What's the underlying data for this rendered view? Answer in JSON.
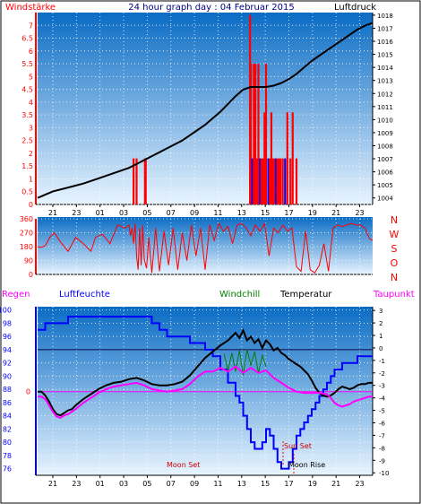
{
  "colors": {
    "left_axis": "#ff0000",
    "humidity": "#0000ff",
    "windchill": "#008000",
    "temperature": "#000000",
    "dewpoint": "#ff00ff",
    "pressure_line": "#000000",
    "wind_bars": "#ff0000",
    "wind_bars_alt": "#0000ff",
    "grid": "#ffffff",
    "bg_top": "#0a6cc4",
    "bg_bottom": "#e6f2ff"
  },
  "top_panel": {
    "left_title": "Windstärke",
    "center_title": "24 hour graph day : 04 Februar 2015",
    "right_title": "Luftdruck"
  },
  "wind_dir_panel": {
    "compass": [
      "N",
      "W",
      "S",
      "O",
      "N"
    ]
  },
  "bottom_panel": {
    "labels": {
      "regen": "Regen",
      "humidity": "Luftfeuchte",
      "windchill": "Windchill",
      "temperature": "Temperatur",
      "dewpoint": "Taupunkt"
    },
    "annotations": {
      "moon_set": "Moon Set",
      "sun_set": "Sun Set",
      "moon_rise": "Moon Rise"
    }
  },
  "chart_data": [
    {
      "type": "bar",
      "name_hint": "wind-and-pressure",
      "x_ticks": [
        "21",
        "23",
        "01",
        "03",
        "05",
        "07",
        "09",
        "11",
        "13",
        "15",
        "17",
        "19",
        "21",
        "23"
      ],
      "left_axis": {
        "ticks": [
          "0",
          "0.5",
          "1",
          "1.5",
          "2",
          "2.5",
          "3",
          "3.5",
          "4",
          "4.5",
          "5",
          "5.5",
          "6",
          "6.5",
          "7"
        ],
        "ylim": [
          0,
          7.5
        ]
      },
      "right_axis": {
        "ticks": [
          "1004",
          "1005",
          "1006",
          "1007",
          "1008",
          "1009",
          "1010",
          "1011",
          "1012",
          "1013",
          "1014",
          "1015",
          "1016",
          "1017",
          "1018"
        ],
        "ylim": [
          1003.5,
          1018.2
        ]
      },
      "grid": true,
      "pressure": {
        "hours": [
          0,
          2,
          4,
          6,
          8,
          10,
          12,
          13,
          14,
          15,
          16,
          17,
          18,
          19,
          20,
          21,
          22,
          23,
          24,
          25,
          26,
          27,
          28,
          29,
          30,
          31,
          32,
          33,
          34,
          35,
          36,
          37,
          38,
          39,
          40,
          41,
          42,
          43,
          44
        ],
        "values": [
          1004.0,
          1004.5,
          1004.8,
          1005.1,
          1005.5,
          1005.9,
          1006.3,
          1006.6,
          1006.9,
          1007.2,
          1007.5,
          1007.8,
          1008.1,
          1008.4,
          1008.8,
          1009.2,
          1009.6,
          1010.1,
          1010.6,
          1011.2,
          1011.8,
          1012.3,
          1012.5,
          1012.5,
          1012.5,
          1012.6,
          1012.8,
          1013.1,
          1013.5,
          1014.0,
          1014.5,
          1014.9,
          1015.3,
          1015.7,
          1016.1,
          1016.5,
          1016.9,
          1017.2,
          1017.4
        ]
      },
      "wind": {
        "hours": [
          12.6,
          13.0,
          14.1,
          14.2,
          27.9,
          28.0,
          28.2,
          28.4,
          28.6,
          28.8,
          29.0,
          29.2,
          29.4,
          29.6,
          29.8,
          30.0,
          30.3,
          30.5,
          30.7,
          30.9,
          31.1,
          31.3,
          31.5,
          31.7,
          31.9,
          32.2,
          32.5,
          32.8,
          33.2,
          33.5,
          34.0
        ],
        "values": [
          1.8,
          1.8,
          1.8,
          1.8,
          7.4,
          5.5,
          1.8,
          5.5,
          5.5,
          1.8,
          5.5,
          1.8,
          1.8,
          1.8,
          3.6,
          5.5,
          1.8,
          1.8,
          3.6,
          1.8,
          1.8,
          1.8,
          1.8,
          1.8,
          1.8,
          1.8,
          1.8,
          3.6,
          1.8,
          3.6,
          1.8
        ]
      }
    },
    {
      "type": "line",
      "name_hint": "wind-direction",
      "left_axis": {
        "ticks": [
          "0",
          "90",
          "180",
          "270",
          "360"
        ],
        "ylim": [
          0,
          360
        ]
      },
      "grid": true,
      "x_ticks": [
        "21",
        "23",
        "01",
        "03",
        "05",
        "07",
        "09",
        "11",
        "13",
        "15",
        "17",
        "19",
        "21",
        "23"
      ],
      "direction": {
        "hours": [
          0,
          0.4,
          1.0,
          1.6,
          2.2,
          3.0,
          4.0,
          5.0,
          6.0,
          7.0,
          7.6,
          8.5,
          9.5,
          10.5,
          11.5,
          12.0,
          12.2,
          12.4,
          12.6,
          12.8,
          13.0,
          13.2,
          13.4,
          13.6,
          13.8,
          14.0,
          14.3,
          14.6,
          15.0,
          15.5,
          16.0,
          16.6,
          17.2,
          17.8,
          18.4,
          19.0,
          19.6,
          20.2,
          20.8,
          21.4,
          22.0,
          22.6,
          23.2,
          23.8,
          24.4,
          25.0,
          25.6,
          26.2,
          26.8,
          27.4,
          28.0,
          28.6,
          29.2,
          29.8,
          30.4,
          31.0,
          31.6,
          32.2,
          32.8,
          33.4,
          34.0,
          34.6,
          35.2,
          35.8,
          36.4,
          37.0,
          37.6,
          38.2,
          38.8,
          39.4,
          40.0,
          40.6,
          41.2,
          41.8,
          42.4,
          43.0,
          43.6,
          44.0
        ],
        "values": [
          180,
          175,
          185,
          240,
          270,
          210,
          150,
          240,
          200,
          150,
          240,
          260,
          200,
          320,
          300,
          320,
          250,
          300,
          200,
          330,
          120,
          30,
          300,
          60,
          320,
          100,
          40,
          240,
          10,
          300,
          20,
          280,
          60,
          300,
          30,
          270,
          90,
          320,
          120,
          300,
          30,
          320,
          220,
          330,
          280,
          310,
          200,
          320,
          330,
          300,
          250,
          320,
          280,
          330,
          120,
          300,
          270,
          320,
          280,
          300,
          50,
          20,
          280,
          30,
          10,
          60,
          200,
          20,
          300,
          320,
          310,
          320,
          330,
          320,
          320,
          300,
          230,
          220
        ]
      }
    },
    {
      "type": "line",
      "name_hint": "humidity-temperature",
      "x_ticks": [
        "21",
        "23",
        "01",
        "03",
        "05",
        "07",
        "09",
        "11",
        "13",
        "15",
        "17",
        "19",
        "21",
        "23"
      ],
      "left_axis": {
        "ticks": [
          "76",
          "78",
          "80",
          "82",
          "84",
          "86",
          "88",
          "90",
          "92",
          "94",
          "96",
          "98",
          "100"
        ],
        "ylim": [
          75,
          100.5
        ]
      },
      "rain_axis": {
        "ticks": [
          "0"
        ]
      },
      "right_axis": {
        "ticks": [
          "-10",
          "-9",
          "-8",
          "-7",
          "-6",
          "-5",
          "-4",
          "-3",
          "-2",
          "-1",
          "0",
          "1",
          "2",
          "3"
        ],
        "ylim": [
          -10.2,
          3.3
        ]
      },
      "grid": true,
      "series": [
        {
          "key": "humidity",
          "hours": [
            0,
            0.5,
            1.0,
            2.0,
            3.0,
            4.0,
            5.0,
            6.0,
            7.0,
            8.0,
            9.0,
            10.0,
            11.0,
            12.0,
            13.0,
            14.0,
            15.0,
            16.0,
            17.0,
            18.0,
            19.0,
            20.0,
            21.0,
            22.0,
            23.0,
            24.0,
            25.0,
            26.0,
            26.5,
            27.0,
            27.5,
            28.0,
            28.5,
            29.0,
            29.5,
            30.0,
            30.5,
            31.0,
            31.5,
            32.0,
            32.5,
            33.0,
            33.5,
            34.0,
            34.5,
            35.0,
            35.5,
            36.0,
            36.5,
            37.0,
            37.5,
            38.0,
            38.5,
            39.0,
            39.5,
            40.0,
            40.5,
            41.0,
            41.5,
            42.0,
            42.5,
            43.0,
            43.5,
            44.0
          ],
          "values": [
            97,
            97,
            98,
            98,
            98,
            99,
            99,
            99,
            99,
            99,
            99,
            99,
            99,
            99,
            99,
            99,
            98,
            97,
            96,
            96,
            96,
            95,
            95,
            94,
            93,
            91,
            89,
            87,
            86,
            84,
            82,
            80,
            79,
            79,
            80,
            82,
            81,
            79,
            77,
            76,
            76,
            77,
            79,
            81,
            82,
            83,
            84,
            85,
            86,
            87,
            88,
            89,
            90,
            91,
            91,
            92,
            92,
            92,
            92,
            93,
            93,
            93,
            93,
            93
          ]
        },
        {
          "key": "temperature",
          "hours": [
            0,
            0.5,
            1.0,
            1.5,
            2.0,
            2.5,
            3.0,
            3.5,
            4.0,
            4.5,
            5.0,
            6.0,
            7.0,
            8.0,
            9.0,
            10.0,
            11.0,
            12.0,
            13.0,
            14.0,
            15.0,
            16.0,
            17.0,
            18.0,
            19.0,
            20.0,
            21.0,
            22.0,
            23.0,
            24.0,
            24.5,
            25.0,
            25.5,
            26.0,
            26.5,
            27.0,
            27.5,
            28.0,
            28.5,
            29.0,
            29.5,
            30.0,
            30.5,
            31.0,
            31.5,
            32.0,
            32.5,
            33.0,
            33.5,
            34.0,
            34.5,
            35.0,
            35.5,
            36.0,
            36.5,
            37.0,
            37.5,
            38.0,
            38.5,
            39.0,
            39.5,
            40.0,
            40.5,
            41.0,
            41.5,
            42.0,
            42.5,
            43.0,
            43.5,
            44.0
          ],
          "values": [
            -3.5,
            -3.5,
            -3.8,
            -4.3,
            -4.9,
            -5.3,
            -5.4,
            -5.2,
            -5.0,
            -4.9,
            -4.6,
            -4.1,
            -3.7,
            -3.3,
            -3.0,
            -2.8,
            -2.7,
            -2.5,
            -2.4,
            -2.6,
            -2.9,
            -3.0,
            -3.0,
            -2.9,
            -2.7,
            -2.2,
            -1.5,
            -0.8,
            -0.3,
            0.2,
            0.4,
            0.6,
            0.9,
            1.2,
            0.8,
            1.4,
            0.6,
            0.9,
            0.4,
            0.7,
            0.0,
            0.6,
            0.3,
            -0.2,
            0.0,
            -0.4,
            -0.6,
            -0.9,
            -1.1,
            -1.3,
            -1.5,
            -1.8,
            -2.1,
            -2.6,
            -3.2,
            -3.6,
            -3.8,
            -3.9,
            -3.8,
            -3.6,
            -3.3,
            -3.1,
            -3.2,
            -3.3,
            -3.2,
            -3.0,
            -2.9,
            -2.9,
            -2.8,
            -2.8
          ]
        },
        {
          "key": "windchill",
          "hours": [
            24.5,
            25.0,
            25.5,
            26.0,
            26.5,
            27.0,
            27.5,
            28.0,
            28.5,
            29.0,
            29.5,
            30.0
          ],
          "values": [
            -0.5,
            -1.8,
            -0.4,
            -1.9,
            -0.2,
            -2.2,
            -0.1,
            -1.4,
            -0.3,
            -2.0,
            -0.6,
            -1.5
          ]
        },
        {
          "key": "dewpoint",
          "hours": [
            0,
            0.5,
            1.0,
            1.5,
            2.0,
            2.5,
            3.0,
            3.5,
            4.0,
            4.5,
            5.0,
            6.0,
            7.0,
            8.0,
            9.0,
            10.0,
            11.0,
            12.0,
            13.0,
            14.0,
            15.0,
            16.0,
            17.0,
            18.0,
            19.0,
            20.0,
            21.0,
            22.0,
            23.0,
            24.0,
            25.0,
            26.0,
            27.0,
            28.0,
            29.0,
            30.0,
            31.0,
            32.0,
            33.0,
            34.0,
            35.0,
            36.0,
            37.0,
            38.0,
            38.5,
            39.0,
            39.5,
            40.0,
            40.5,
            41.0,
            41.5,
            42.0,
            42.5,
            43.0,
            43.5,
            44.0
          ],
          "values": [
            -3.9,
            -3.9,
            -4.1,
            -4.6,
            -5.1,
            -5.5,
            -5.6,
            -5.4,
            -5.3,
            -5.1,
            -4.9,
            -4.4,
            -4.0,
            -3.6,
            -3.3,
            -3.1,
            -3.0,
            -2.9,
            -2.8,
            -3.0,
            -3.3,
            -3.4,
            -3.5,
            -3.4,
            -3.3,
            -2.9,
            -2.3,
            -1.9,
            -1.9,
            -1.6,
            -1.9,
            -1.5,
            -2.0,
            -1.6,
            -2.0,
            -1.8,
            -2.4,
            -2.8,
            -3.2,
            -3.5,
            -3.6,
            -3.6,
            -3.6,
            -3.7,
            -4.0,
            -4.4,
            -4.6,
            -4.7,
            -4.6,
            -4.5,
            -4.3,
            -4.2,
            -4.1,
            -4.0,
            -3.9,
            -3.9
          ]
        }
      ],
      "humidity_ref_line": 94,
      "rain_zero_ref": 0
    }
  ]
}
